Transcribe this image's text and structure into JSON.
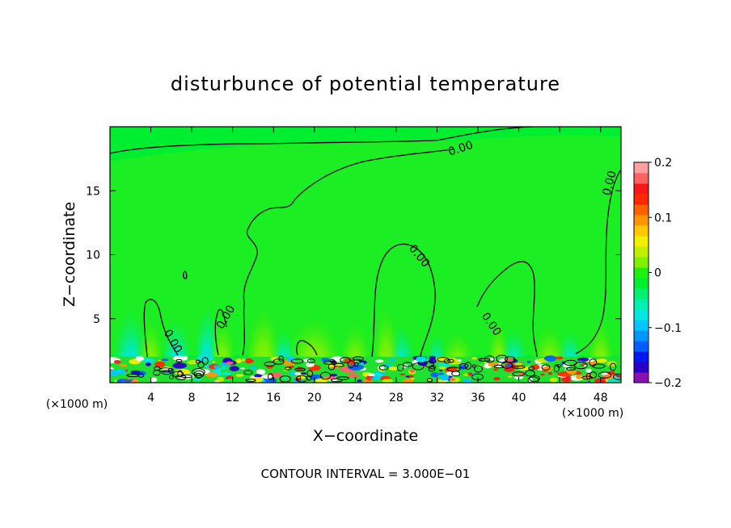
{
  "chart_data": {
    "type": "heatmap",
    "title": "disturbunce of potential temperature",
    "xlabel": "X−coordinate",
    "ylabel": "Z−coordinate",
    "x_unit_left": "(×1000 m)",
    "x_unit_right": "(×1000 m)",
    "xlim": [
      0,
      50
    ],
    "ylim": [
      0,
      20
    ],
    "x_ticks": [
      4,
      8,
      12,
      16,
      20,
      24,
      28,
      32,
      36,
      40,
      44,
      48
    ],
    "x_tick_labels": [
      "4",
      "8",
      "12",
      "16",
      "20",
      "24",
      "28",
      "32",
      "36",
      "40",
      "44",
      "48"
    ],
    "y_ticks": [
      5,
      10,
      15
    ],
    "y_tick_labels": [
      "5",
      "10",
      "15"
    ],
    "colorbar": {
      "range": [
        -0.2,
        0.2
      ],
      "ticks": [
        -0.2,
        -0.1,
        0,
        0.1,
        0.2
      ],
      "tick_labels": [
        "−0.2",
        "−0.1",
        "0",
        "0.1",
        "0.2"
      ],
      "colors": [
        "#8a10b0",
        "#2a00c8",
        "#0018f0",
        "#0060ff",
        "#0098ff",
        "#00c8ff",
        "#00e8e0",
        "#00f0b0",
        "#00f070",
        "#00ee30",
        "#20f010",
        "#80f000",
        "#c0f000",
        "#f0f000",
        "#ffc800",
        "#ff9600",
        "#ff6000",
        "#ff2800",
        "#f81818",
        "#ff6060",
        "#ffa0a0"
      ]
    },
    "contour_labels": [
      "0.00",
      "0.00",
      "0.00",
      "0.00",
      "0.00",
      "0.00"
    ],
    "footer": "CONTOUR INTERVAL = 3.000E−01"
  }
}
